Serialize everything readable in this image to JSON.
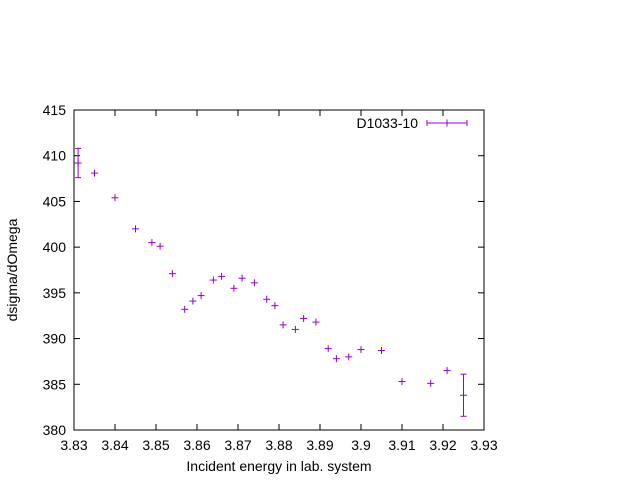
{
  "chart_data": {
    "type": "scatter",
    "title": "",
    "xlabel": "Incident energy in lab. system",
    "ylabel": "dsigma/dOmega",
    "xlim": [
      3.83,
      3.93
    ],
    "ylim": [
      380,
      415
    ],
    "x_ticks": [
      "3.83",
      "3.84",
      "3.85",
      "3.86",
      "3.87",
      "3.88",
      "3.89",
      "3.9",
      "3.91",
      "3.92",
      "3.93"
    ],
    "y_ticks": [
      "380",
      "385",
      "390",
      "395",
      "400",
      "405",
      "410",
      "415"
    ],
    "grid": false,
    "legend_position": "top-right",
    "colors": {
      "series": "#9400d3",
      "axes": "#000000"
    },
    "series": [
      {
        "name": "D1033-10",
        "marker": "plus",
        "errorbars": true,
        "points": [
          {
            "x": 3.831,
            "y": 409.2,
            "yerr": 1.6
          },
          {
            "x": 3.835,
            "y": 408.1
          },
          {
            "x": 3.84,
            "y": 405.4
          },
          {
            "x": 3.845,
            "y": 402.0
          },
          {
            "x": 3.849,
            "y": 400.5
          },
          {
            "x": 3.851,
            "y": 400.1
          },
          {
            "x": 3.854,
            "y": 397.1
          },
          {
            "x": 3.857,
            "y": 393.2
          },
          {
            "x": 3.859,
            "y": 394.1
          },
          {
            "x": 3.861,
            "y": 394.7
          },
          {
            "x": 3.864,
            "y": 396.4
          },
          {
            "x": 3.866,
            "y": 396.8
          },
          {
            "x": 3.869,
            "y": 395.5
          },
          {
            "x": 3.871,
            "y": 396.6
          },
          {
            "x": 3.874,
            "y": 396.1
          },
          {
            "x": 3.877,
            "y": 394.3
          },
          {
            "x": 3.879,
            "y": 393.6
          },
          {
            "x": 3.881,
            "y": 391.5
          },
          {
            "x": 3.884,
            "y": 391.0
          },
          {
            "x": 3.886,
            "y": 392.2
          },
          {
            "x": 3.889,
            "y": 391.8
          },
          {
            "x": 3.892,
            "y": 388.9
          },
          {
            "x": 3.894,
            "y": 387.8
          },
          {
            "x": 3.897,
            "y": 388.0
          },
          {
            "x": 3.9,
            "y": 388.8
          },
          {
            "x": 3.905,
            "y": 388.7
          },
          {
            "x": 3.91,
            "y": 385.3
          },
          {
            "x": 3.917,
            "y": 385.1
          },
          {
            "x": 3.921,
            "y": 386.5
          },
          {
            "x": 3.925,
            "y": 383.8,
            "yerr": 2.3
          }
        ]
      }
    ]
  }
}
